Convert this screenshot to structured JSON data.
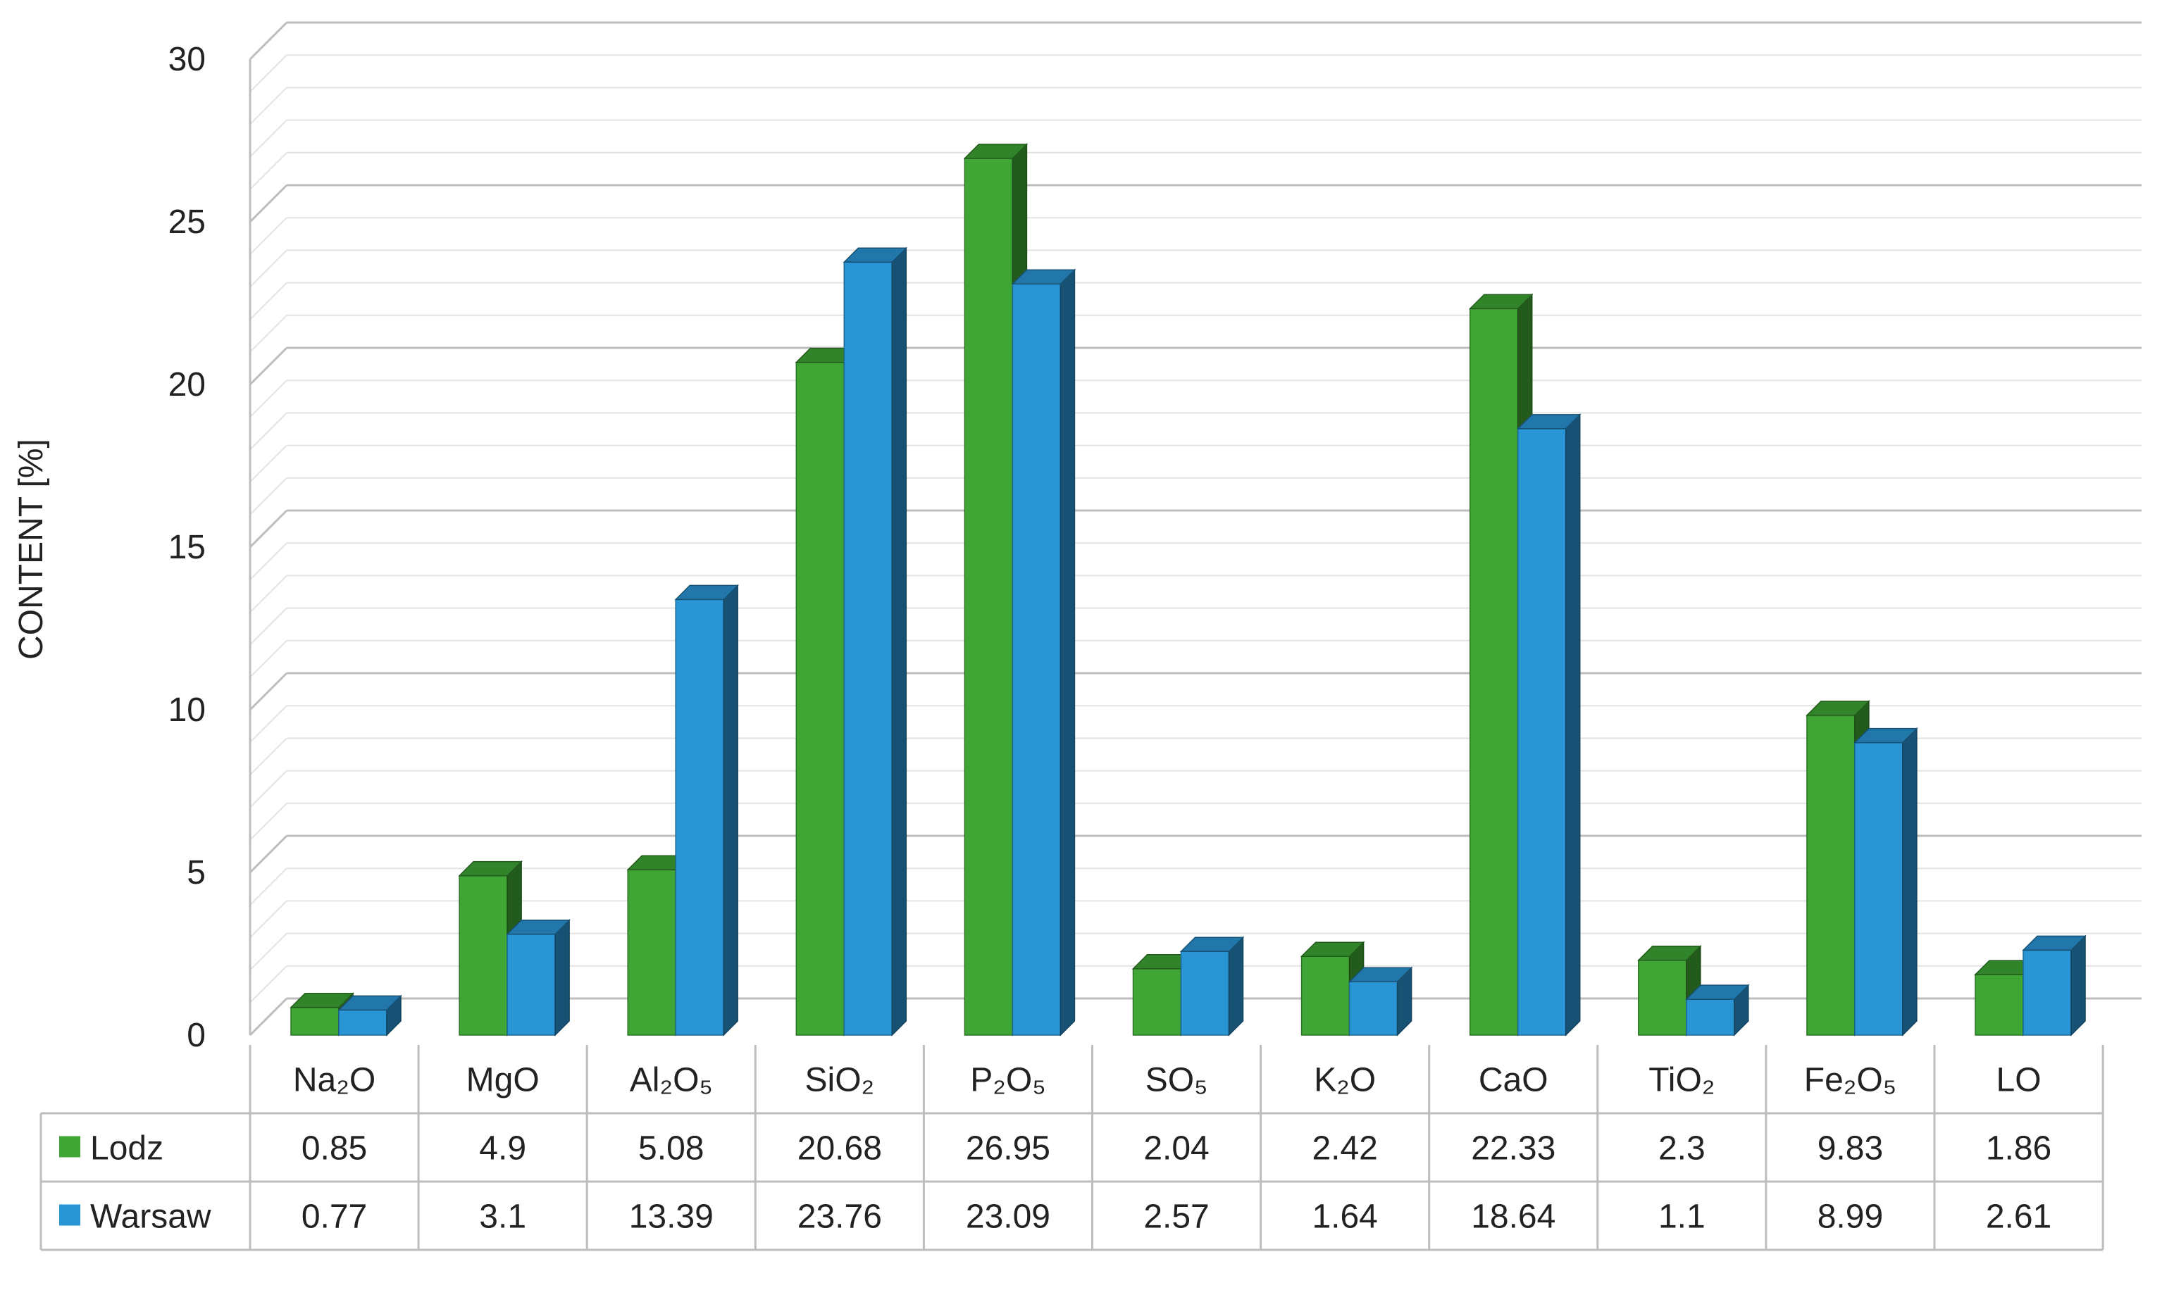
{
  "chart_data": {
    "type": "bar",
    "title": "",
    "xlabel": "",
    "ylabel": "CONTENT [%]",
    "ylim": [
      0,
      30
    ],
    "yticks": [
      "0",
      "5",
      "10",
      "15",
      "20",
      "25",
      "30"
    ],
    "grid": true,
    "style": "3d-clustered-column-with-data-table",
    "categories": [
      "Na₂O",
      "MgO",
      "Al₂O₅",
      "SiO₂",
      "P₂O₅",
      "SO₅",
      "K₂O",
      "CaO",
      "TiO₂",
      "Fe₂O₅",
      "LO"
    ],
    "series": [
      {
        "name": "Lodz",
        "color": "#3fa535",
        "values": [
          0.85,
          4.9,
          5.08,
          20.68,
          26.95,
          2.04,
          2.42,
          22.33,
          2.3,
          9.83,
          1.86
        ],
        "labels": [
          "0.85",
          "4.9",
          "5.08",
          "20.68",
          "26.95",
          "2.04",
          "2.42",
          "22.33",
          "2.3",
          "9.83",
          "1.86"
        ]
      },
      {
        "name": "Warsaw",
        "color": "#2a95d4",
        "values": [
          0.77,
          3.1,
          13.39,
          23.76,
          23.09,
          2.57,
          1.64,
          18.64,
          1.1,
          8.99,
          2.61
        ],
        "labels": [
          "0.77",
          "3.1",
          "13.39",
          "23.76",
          "23.09",
          "2.57",
          "1.64",
          "18.64",
          "1.1",
          "8.99",
          "2.61"
        ]
      }
    ],
    "legend": "data-table"
  }
}
